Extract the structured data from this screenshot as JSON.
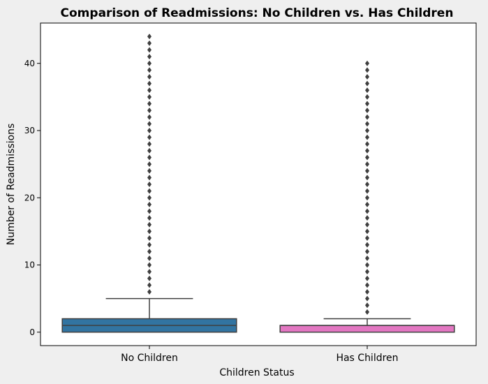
{
  "chart_data": {
    "type": "box",
    "title": "Comparison of Readmissions: No Children vs. Has Children",
    "xlabel": "Children Status",
    "ylabel": "Number of Readmissions",
    "categories": [
      "No Children",
      "Has Children"
    ],
    "ylim": [
      -2,
      46
    ],
    "yticks": [
      0,
      10,
      20,
      30,
      40
    ],
    "grid": false,
    "boxes": [
      {
        "name": "No Children",
        "color": "#3274a1",
        "whisker_low": 0,
        "q1": 0,
        "median": 1,
        "q3": 2,
        "whisker_high": 5,
        "outlier_range": [
          6,
          44
        ]
      },
      {
        "name": "Has Children",
        "color": "#e377c2",
        "whisker_low": 0,
        "q1": 0,
        "median": 1,
        "q3": 1,
        "whisker_high": 2,
        "outlier_range": [
          3,
          40
        ]
      }
    ],
    "outlier_color": "#3f3f3f",
    "line_color": "#3f3f3f"
  }
}
